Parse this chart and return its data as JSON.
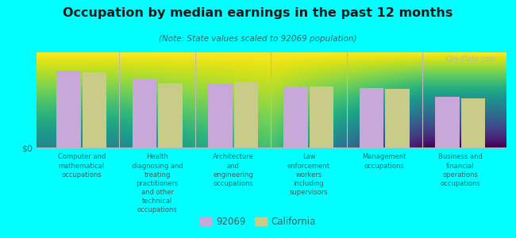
{
  "title": "Occupation by median earnings in the past 12 months",
  "subtitle": "(Note: State values scaled to 92069 population)",
  "background_color": "#00ffff",
  "plot_bg_top": "#ffffff",
  "plot_bg_bottom": "#d4e8b0",
  "bar_color_92069": "#c8a8d8",
  "bar_color_ca": "#c8cc88",
  "categories": [
    "Computer and\nmathematical\noccupations",
    "Health\ndiagnosing and\ntreating\npractitioners\nand other\ntechnical\noccupations",
    "Architecture\nand\nengineering\noccupations",
    "Law\nenforcement\nworkers\nincluding\nsupervisors",
    "Management\noccupations",
    "Business and\nfinancial\noperations\noccupations"
  ],
  "values_92069": [
    5.0,
    4.5,
    4.2,
    4.0,
    3.9,
    3.3
  ],
  "values_ca": [
    4.9,
    4.2,
    4.3,
    4.0,
    3.8,
    3.2
  ],
  "ylabel": "$0",
  "legend_92069": "92069",
  "legend_ca": "California",
  "watermark": "City-Data.com",
  "title_color": "#1a1a1a",
  "subtitle_color": "#336666",
  "label_color": "#336666",
  "watermark_color": "#aabbaa"
}
